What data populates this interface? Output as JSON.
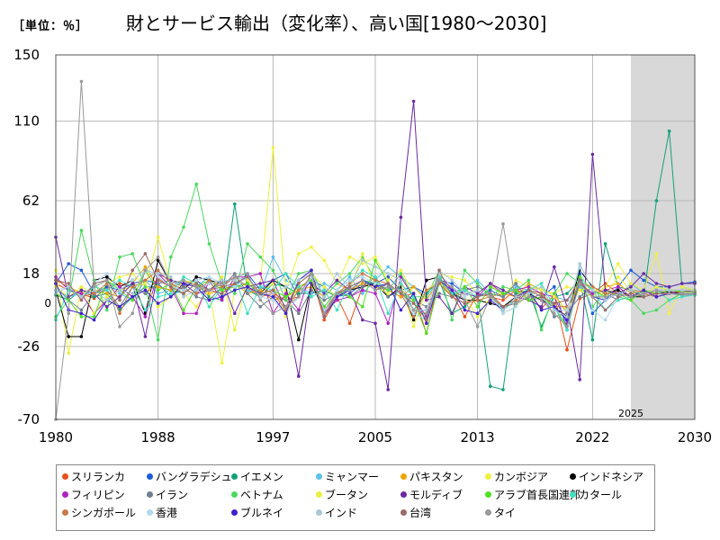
{
  "unit_label": "［単位：％］",
  "chart_data": {
    "type": "line",
    "title": "財とサービス輸出（変化率）、高い国[1980〜2030]",
    "xlabel": "",
    "ylabel": "",
    "xlim": [
      1980,
      2030
    ],
    "ylim": [
      -70,
      150
    ],
    "x_ticks": [
      1980,
      1988,
      1997,
      2005,
      2013,
      2022,
      2030
    ],
    "y_ticks": [
      150,
      110,
      62,
      18,
      -26,
      -70
    ],
    "zero_label": "0",
    "forecast_start": 2025,
    "forecast_label": "2025",
    "series": [
      {
        "name": "スリランカ",
        "color": "#e8501a",
        "values": [
          12,
          8,
          6,
          3,
          10,
          12,
          10,
          6,
          15,
          10,
          12,
          14,
          8,
          10,
          12,
          8,
          10,
          6,
          2,
          4,
          18,
          -10,
          4,
          -12,
          10,
          12,
          8,
          4,
          6,
          -18,
          16,
          6,
          -8,
          6,
          4,
          2,
          8,
          6,
          -3,
          5,
          -28,
          3,
          6,
          12,
          6,
          8,
          7,
          6,
          6,
          7,
          7
        ]
      },
      {
        "name": "バングラデシュ",
        "color": "#1f5bd8",
        "values": [
          12,
          24,
          20,
          6,
          10,
          8,
          12,
          14,
          12,
          4,
          10,
          14,
          8,
          12,
          10,
          18,
          8,
          14,
          18,
          4,
          14,
          10,
          4,
          6,
          12,
          12,
          16,
          8,
          10,
          6,
          14,
          12,
          6,
          4,
          8,
          4,
          12,
          2,
          4,
          10,
          -16,
          18,
          -6,
          2,
          10,
          20,
          14,
          10,
          10,
          12,
          13
        ]
      },
      {
        "name": "イエメン",
        "color": "#12a079",
        "values": [
          5,
          2,
          8,
          4,
          6,
          -4,
          4,
          10,
          10,
          8,
          6,
          12,
          4,
          2,
          60,
          8,
          4,
          12,
          10,
          6,
          6,
          8,
          4,
          10,
          14,
          12,
          8,
          10,
          -4,
          6,
          14,
          -6,
          -2,
          6,
          -50,
          -52,
          6,
          8,
          -14,
          4,
          6,
          14,
          -22,
          36,
          10,
          8,
          4,
          62,
          104,
          10,
          8
        ]
      },
      {
        "name": "ミャンマー",
        "color": "#5bc0eb",
        "values": [
          8,
          4,
          6,
          10,
          14,
          6,
          2,
          14,
          6,
          8,
          14,
          10,
          16,
          4,
          12,
          8,
          6,
          28,
          14,
          10,
          6,
          12,
          8,
          16,
          6,
          14,
          22,
          16,
          10,
          4,
          14,
          6,
          10,
          14,
          6,
          4,
          10,
          8,
          6,
          4,
          2,
          10,
          6,
          8,
          4,
          12,
          6,
          10,
          8,
          8,
          8
        ]
      },
      {
        "name": "パキスタン",
        "color": "#f0a500",
        "values": [
          14,
          10,
          6,
          8,
          6,
          4,
          12,
          22,
          10,
          8,
          10,
          12,
          6,
          8,
          12,
          6,
          8,
          2,
          4,
          8,
          10,
          4,
          12,
          8,
          12,
          10,
          8,
          4,
          10,
          2,
          14,
          4,
          6,
          8,
          4,
          6,
          4,
          12,
          8,
          6,
          -6,
          14,
          4,
          10,
          12,
          6,
          8,
          6,
          8,
          8,
          8
        ]
      },
      {
        "name": "カンボジア",
        "color": "#f0f040",
        "values": [
          20,
          -30,
          10,
          6,
          12,
          16,
          18,
          10,
          40,
          12,
          6,
          -2,
          8,
          -36,
          8,
          10,
          12,
          94,
          8,
          30,
          34,
          26,
          12,
          28,
          24,
          28,
          14,
          20,
          6,
          -10,
          18,
          16,
          14,
          6,
          12,
          4,
          14,
          10,
          8,
          6,
          10,
          8,
          4,
          10,
          24,
          12,
          8,
          30,
          -6,
          10,
          8
        ]
      },
      {
        "name": "インドネシア",
        "color": "#000000",
        "values": [
          8,
          -20,
          -20,
          14,
          16,
          10,
          14,
          -6,
          26,
          12,
          8,
          16,
          14,
          12,
          10,
          12,
          6,
          14,
          10,
          -22,
          12,
          -4,
          6,
          8,
          10,
          12,
          4,
          10,
          -10,
          14,
          16,
          6,
          2,
          2,
          0,
          -2,
          4,
          6,
          2,
          -2,
          -8,
          20,
          10,
          6,
          8,
          4,
          4,
          6,
          7,
          6,
          6
        ]
      },
      {
        "name": "フィリピン",
        "color": "#b020c0",
        "values": [
          16,
          8,
          6,
          -6,
          2,
          10,
          4,
          -8,
          18,
          10,
          -6,
          -6,
          14,
          2,
          16,
          16,
          18,
          -6,
          6,
          -4,
          20,
          -6,
          2,
          4,
          8,
          6,
          -12,
          16,
          4,
          -8,
          18,
          8,
          6,
          4,
          12,
          6,
          8,
          10,
          6,
          4,
          -12,
          12,
          6,
          8,
          10,
          4,
          6,
          8,
          6,
          8,
          7
        ]
      },
      {
        "name": "イラン",
        "color": "#708090",
        "values": [
          10,
          2,
          -4,
          6,
          8,
          -2,
          10,
          6,
          12,
          14,
          10,
          4,
          2,
          10,
          18,
          6,
          -2,
          4,
          2,
          -6,
          8,
          2,
          6,
          4,
          10,
          16,
          4,
          8,
          2,
          -2,
          6,
          4,
          8,
          10,
          6,
          4,
          12,
          2,
          6,
          -8,
          -6,
          4,
          10,
          6,
          2,
          4,
          6,
          4,
          6,
          5,
          5
        ]
      },
      {
        "name": "ベトナム",
        "color": "#4cd860",
        "values": [
          -8,
          2,
          44,
          14,
          -4,
          28,
          30,
          10,
          -22,
          28,
          46,
          72,
          36,
          12,
          6,
          36,
          28,
          20,
          2,
          18,
          20,
          4,
          12,
          18,
          28,
          14,
          8,
          18,
          4,
          4,
          20,
          -10,
          20,
          12,
          4,
          10,
          8,
          14,
          -16,
          6,
          18,
          12,
          -2,
          8,
          4,
          2,
          -6,
          -4,
          2,
          6,
          6
        ]
      },
      {
        "name": "ブータン",
        "color": "#e8f040",
        "values": [
          10,
          4,
          10,
          -6,
          4,
          8,
          10,
          12,
          -2,
          4,
          14,
          12,
          8,
          16,
          -16,
          14,
          6,
          12,
          -8,
          12,
          18,
          10,
          4,
          8,
          30,
          10,
          6,
          12,
          -14,
          8,
          14,
          10,
          4,
          -8,
          4,
          -6,
          -2,
          6,
          10,
          4,
          -4,
          8,
          10,
          4,
          16,
          8,
          6,
          10,
          8,
          8,
          8
        ]
      },
      {
        "name": "モルディブ",
        "color": "#6a2aa0",
        "values": [
          40,
          4,
          8,
          6,
          -2,
          4,
          12,
          -20,
          18,
          14,
          12,
          6,
          8,
          14,
          -6,
          10,
          12,
          14,
          -4,
          -44,
          12,
          6,
          14,
          8,
          -10,
          -12,
          -52,
          52,
          122,
          2,
          4,
          -6,
          10,
          6,
          12,
          8,
          4,
          2,
          -2,
          22,
          -2,
          -46,
          90,
          8,
          6,
          10,
          18,
          12,
          10,
          12,
          12
        ]
      },
      {
        "name": "アラブ首長国連邦",
        "color": "#50e020",
        "values": [
          6,
          2,
          -8,
          -8,
          14,
          8,
          2,
          20,
          8,
          12,
          -4,
          10,
          14,
          8,
          10,
          12,
          6,
          8,
          4,
          10,
          14,
          -2,
          8,
          4,
          -2,
          26,
          12,
          6,
          2,
          -18,
          12,
          4,
          10,
          -2,
          10,
          6,
          8,
          2,
          4,
          -2,
          -14,
          16,
          8,
          4,
          6,
          2,
          8,
          6,
          8,
          7,
          7
        ]
      },
      {
        "name": "カタール",
        "color": "#40e0c0",
        "values": [
          -10,
          8,
          4,
          10,
          8,
          14,
          10,
          -4,
          4,
          6,
          16,
          12,
          -2,
          10,
          16,
          -6,
          10,
          8,
          18,
          10,
          4,
          8,
          -4,
          12,
          20,
          16,
          -6,
          12,
          4,
          -10,
          16,
          6,
          8,
          4,
          6,
          -4,
          2,
          8,
          12,
          -2,
          -16,
          14,
          8,
          -4,
          2,
          4,
          6,
          8,
          2,
          4,
          5
        ]
      },
      {
        "name": "シンガポール",
        "color": "#c87848",
        "values": [
          14,
          10,
          4,
          6,
          12,
          -6,
          10,
          14,
          20,
          12,
          8,
          6,
          14,
          10,
          16,
          10,
          4,
          6,
          -4,
          8,
          16,
          -4,
          6,
          12,
          18,
          14,
          12,
          6,
          -8,
          8,
          12,
          4,
          0,
          2,
          4,
          -2,
          2,
          8,
          6,
          -2,
          -2,
          12,
          10,
          6,
          6,
          4,
          6,
          4,
          6,
          6,
          6
        ]
      },
      {
        "name": "香港",
        "color": "#b0d8f0",
        "values": [
          8,
          10,
          4,
          12,
          18,
          8,
          14,
          20,
          16,
          10,
          8,
          14,
          16,
          12,
          10,
          16,
          4,
          2,
          -6,
          4,
          16,
          -4,
          8,
          14,
          16,
          12,
          10,
          8,
          -6,
          -10,
          18,
          10,
          4,
          8,
          4,
          -6,
          -2,
          8,
          4,
          -4,
          -4,
          22,
          -4,
          -10,
          4,
          6,
          4,
          6,
          6,
          6,
          6
        ]
      },
      {
        "name": "ブルネイ",
        "color": "#4020d0",
        "values": [
          12,
          -4,
          -6,
          -10,
          2,
          -2,
          4,
          8,
          0,
          4,
          12,
          10,
          2,
          4,
          8,
          10,
          6,
          4,
          -6,
          14,
          20,
          -8,
          4,
          8,
          14,
          10,
          12,
          -4,
          6,
          -12,
          14,
          8,
          -4,
          -6,
          2,
          -4,
          4,
          8,
          -4,
          -2,
          -10,
          12,
          4,
          2,
          6,
          4,
          8,
          4,
          6,
          6,
          6
        ]
      },
      {
        "name": "インド",
        "color": "#a8c8d8",
        "values": [
          6,
          10,
          4,
          8,
          2,
          8,
          6,
          20,
          18,
          16,
          4,
          8,
          12,
          14,
          14,
          16,
          6,
          6,
          10,
          14,
          18,
          4,
          18,
          10,
          26,
          22,
          18,
          14,
          -4,
          -4,
          20,
          14,
          6,
          8,
          4,
          -4,
          4,
          6,
          10,
          -4,
          -8,
          24,
          8,
          2,
          6,
          8,
          6,
          8,
          8,
          8,
          8
        ]
      },
      {
        "name": "台湾",
        "color": "#9c6a6a",
        "values": [
          14,
          12,
          2,
          12,
          14,
          2,
          20,
          30,
          14,
          10,
          6,
          12,
          8,
          6,
          12,
          16,
          6,
          8,
          -2,
          12,
          18,
          -8,
          6,
          10,
          14,
          8,
          12,
          6,
          0,
          -10,
          20,
          4,
          0,
          4,
          6,
          -2,
          0,
          8,
          4,
          0,
          2,
          14,
          4,
          -4,
          4,
          6,
          4,
          6,
          6,
          6,
          6
        ]
      },
      {
        "name": "タイ",
        "color": "#999999",
        "values": [
          -70,
          -6,
          134,
          10,
          14,
          -14,
          -6,
          20,
          28,
          12,
          14,
          10,
          8,
          12,
          16,
          18,
          2,
          -6,
          -2,
          4,
          18,
          -6,
          6,
          8,
          14,
          8,
          10,
          8,
          -4,
          -6,
          14,
          10,
          2,
          -14,
          4,
          48,
          0,
          4,
          2,
          -6,
          -14,
          12,
          4,
          4,
          6,
          4,
          6,
          8,
          6,
          6,
          6
        ]
      }
    ]
  }
}
